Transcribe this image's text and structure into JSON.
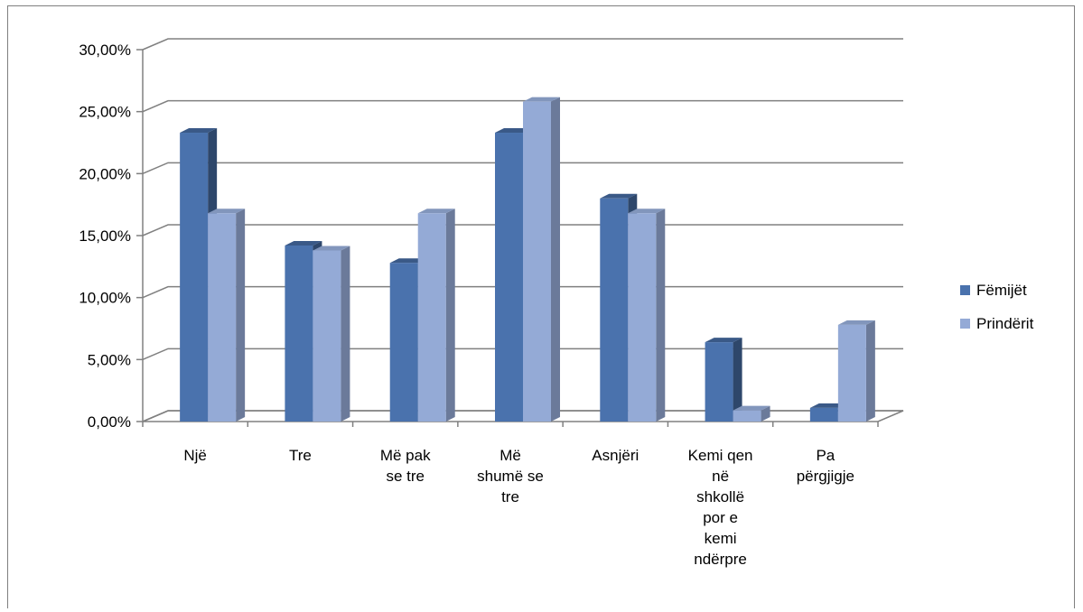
{
  "chart_data": {
    "type": "bar",
    "title": "",
    "xlabel": "",
    "ylabel": "",
    "ylim": [
      0,
      0.3
    ],
    "yticks": [
      "0,00%",
      "5,00%",
      "10,00%",
      "15,00%",
      "20,00%",
      "25,00%",
      "30,00%"
    ],
    "grid": true,
    "legend_position": "right",
    "categories": [
      [
        "Një"
      ],
      [
        "Tre"
      ],
      [
        "Më pak",
        "se tre"
      ],
      [
        "Më",
        "shumë se",
        "tre"
      ],
      [
        "Asnjëri"
      ],
      [
        "Kemi qen",
        "në",
        "shkollë",
        "por e",
        "kemi",
        "ndërpre"
      ],
      [
        "Pa",
        "përgjigje"
      ]
    ],
    "series": [
      {
        "name": "Fëmijët",
        "color": "#4a72ad",
        "values": [
          0.233,
          0.142,
          0.128,
          0.233,
          0.18,
          0.064,
          0.011
        ]
      },
      {
        "name": "Prindërit",
        "color": "#94aad6",
        "values": [
          0.168,
          0.138,
          0.168,
          0.258,
          0.168,
          0.009,
          0.078
        ]
      }
    ]
  }
}
